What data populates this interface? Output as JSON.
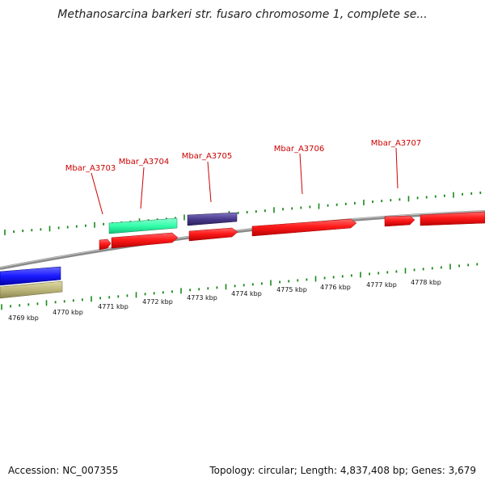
{
  "title": "Methanosarcina barkeri str. fusaro chromosome 1, complete se...",
  "footer": {
    "accession": "Accession: NC_007355",
    "summary": "Topology: circular; Length: 4,837,408 bp; Genes: 3,679"
  },
  "colors": {
    "gene_red": "#ff1a1a",
    "gene_cyan": "#33ffaa",
    "gene_navy": "#4a3a8c",
    "gene_blue": "#1a1aff",
    "gene_khaki": "#bdb67a",
    "tick_green": "#1a8a1a",
    "label_red": "#cc0000",
    "backbone": "#8a8a8a"
  },
  "gene_labels": [
    "Mbar_A3703",
    "Mbar_A3704",
    "Mbar_A3705",
    "Mbar_A3706",
    "Mbar_A3707"
  ],
  "scale_labels": [
    "4769 kbp",
    "4770 kbp",
    "4771 kbp",
    "4772 kbp",
    "4773 kbp",
    "4774 kbp",
    "4775 kbp",
    "4776 kbp",
    "4777 kbp",
    "4778 kbp"
  ]
}
